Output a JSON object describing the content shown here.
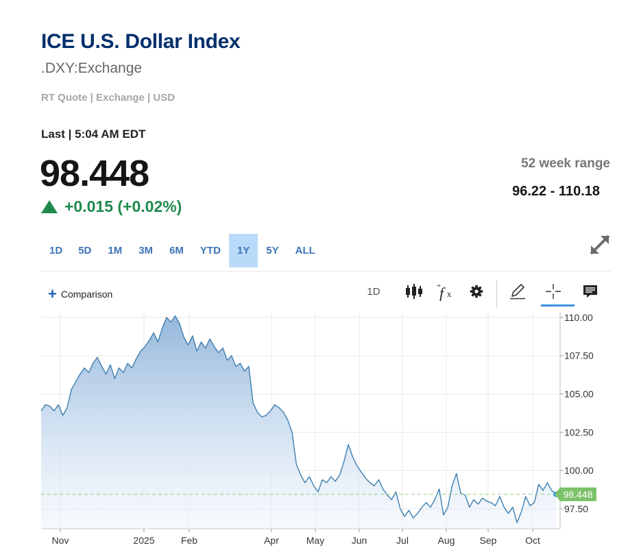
{
  "header": {
    "title": "ICE U.S. Dollar Index",
    "symbol": ".DXY:Exchange",
    "meta": "RT Quote | Exchange | USD"
  },
  "quote": {
    "last_label": "Last | 5:04 AM EDT",
    "price": "98.448",
    "change": "+0.015 (+0.02%)",
    "week52_label": "52 week range",
    "week52_value": "96.22 - 110.18"
  },
  "ranges": {
    "selected": "1Y",
    "items": [
      "1D",
      "5D",
      "1M",
      "3M",
      "6M",
      "YTD",
      "1Y",
      "5Y",
      "ALL"
    ]
  },
  "toolbar": {
    "comparison_label": "Comparison",
    "interval_label": "1D",
    "icons": [
      "candlestick-icon",
      "function-fx-icon",
      "gear-icon",
      "pencil-icon",
      "crosshair-icon",
      "comment-icon"
    ]
  },
  "colors": {
    "title": "#002f6c",
    "accent": "#3c73b8",
    "positive": "#1f8a4c",
    "line": "#3d7eb0",
    "price_tag": "#7cc26a"
  },
  "chart_data": {
    "type": "area",
    "x_tick_labels": [
      "Nov",
      "2025",
      "Feb",
      "Apr",
      "May",
      "Jun",
      "Jul",
      "Aug",
      "Sep",
      "Oct"
    ],
    "y_tick_labels": [
      "110.00",
      "107.50",
      "105.00",
      "102.50",
      "100.00",
      "97.50"
    ],
    "ylim": [
      96.2,
      110.4
    ],
    "last_value": 98.448,
    "last_value_label": "98.448",
    "grid": true,
    "series": [
      {
        "values": [
          103.9,
          104.3,
          104.2,
          103.9,
          104.3,
          103.6,
          104.1,
          105.3,
          105.8,
          106.3,
          106.7,
          106.4,
          107.0,
          107.4,
          106.8,
          106.3,
          106.9,
          106.0,
          106.7,
          106.4,
          107.0,
          106.7,
          107.3,
          107.8,
          108.1,
          108.5,
          109.0,
          108.4,
          109.3,
          110.0,
          109.7,
          110.1,
          109.6,
          108.7,
          108.2,
          108.8,
          107.8,
          108.4,
          108.0,
          108.6,
          108.1,
          107.7,
          108.0,
          107.2,
          107.5,
          106.8,
          107.0,
          106.5,
          106.8,
          104.4,
          103.8,
          103.5,
          103.6,
          103.9,
          104.3,
          104.1,
          103.8,
          103.3,
          102.5,
          100.4,
          99.7,
          99.2,
          99.6,
          99.0,
          98.6,
          99.4,
          99.2,
          99.6,
          99.3,
          99.7,
          100.6,
          101.7,
          100.9,
          100.3,
          99.9,
          99.5,
          99.2,
          99.0,
          99.4,
          98.8,
          98.4,
          98.1,
          98.6,
          97.5,
          97.0,
          97.4,
          96.9,
          97.2,
          97.6,
          97.9,
          97.6,
          98.1,
          98.8,
          97.1,
          97.6,
          99.0,
          99.8,
          98.5,
          98.4,
          97.6,
          98.1,
          97.8,
          98.2,
          98.0,
          97.9,
          97.7,
          98.3,
          97.6,
          97.2,
          97.6,
          96.6,
          97.3,
          98.3,
          97.7,
          97.9,
          99.1,
          98.7,
          99.2,
          98.7,
          98.448
        ]
      }
    ]
  }
}
